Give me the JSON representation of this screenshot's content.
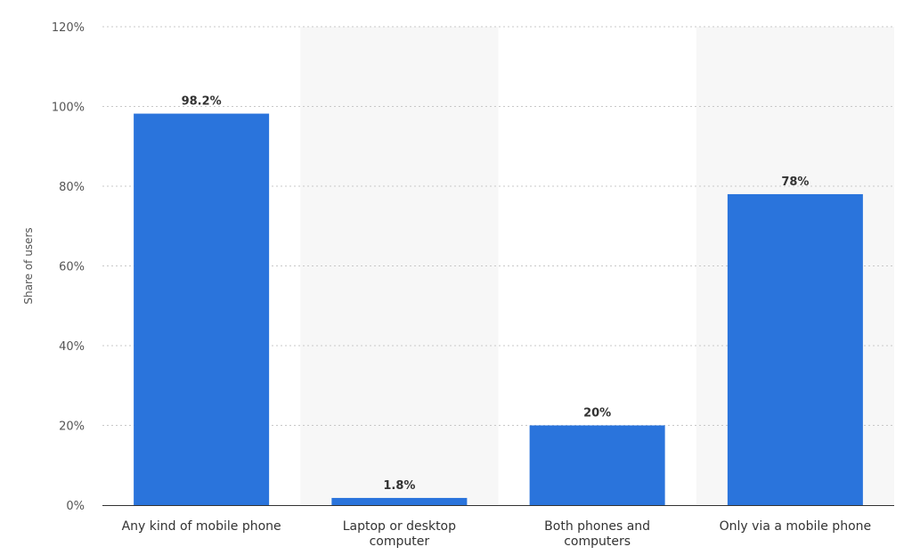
{
  "chart_data": {
    "type": "bar",
    "title": "",
    "xlabel": "",
    "ylabel": "Share of users",
    "categories": [
      [
        "Any kind of mobile phone"
      ],
      [
        "Laptop or desktop",
        "computer"
      ],
      [
        "Both phones and",
        "computers"
      ],
      [
        "Only via a mobile phone"
      ]
    ],
    "values": [
      98.2,
      1.8,
      20,
      78
    ],
    "value_labels": [
      "98.2%",
      "1.8%",
      "20%",
      "78%"
    ],
    "ylim": [
      0,
      120
    ],
    "yticks": [
      0,
      20,
      40,
      60,
      80,
      100,
      120
    ],
    "ytick_labels": [
      "0%",
      "20%",
      "40%",
      "60%",
      "80%",
      "100%",
      "120%"
    ],
    "grid": true,
    "alternating_bands": true,
    "bar_color": "#2a74dc",
    "band_color": "#f7f7f7"
  }
}
